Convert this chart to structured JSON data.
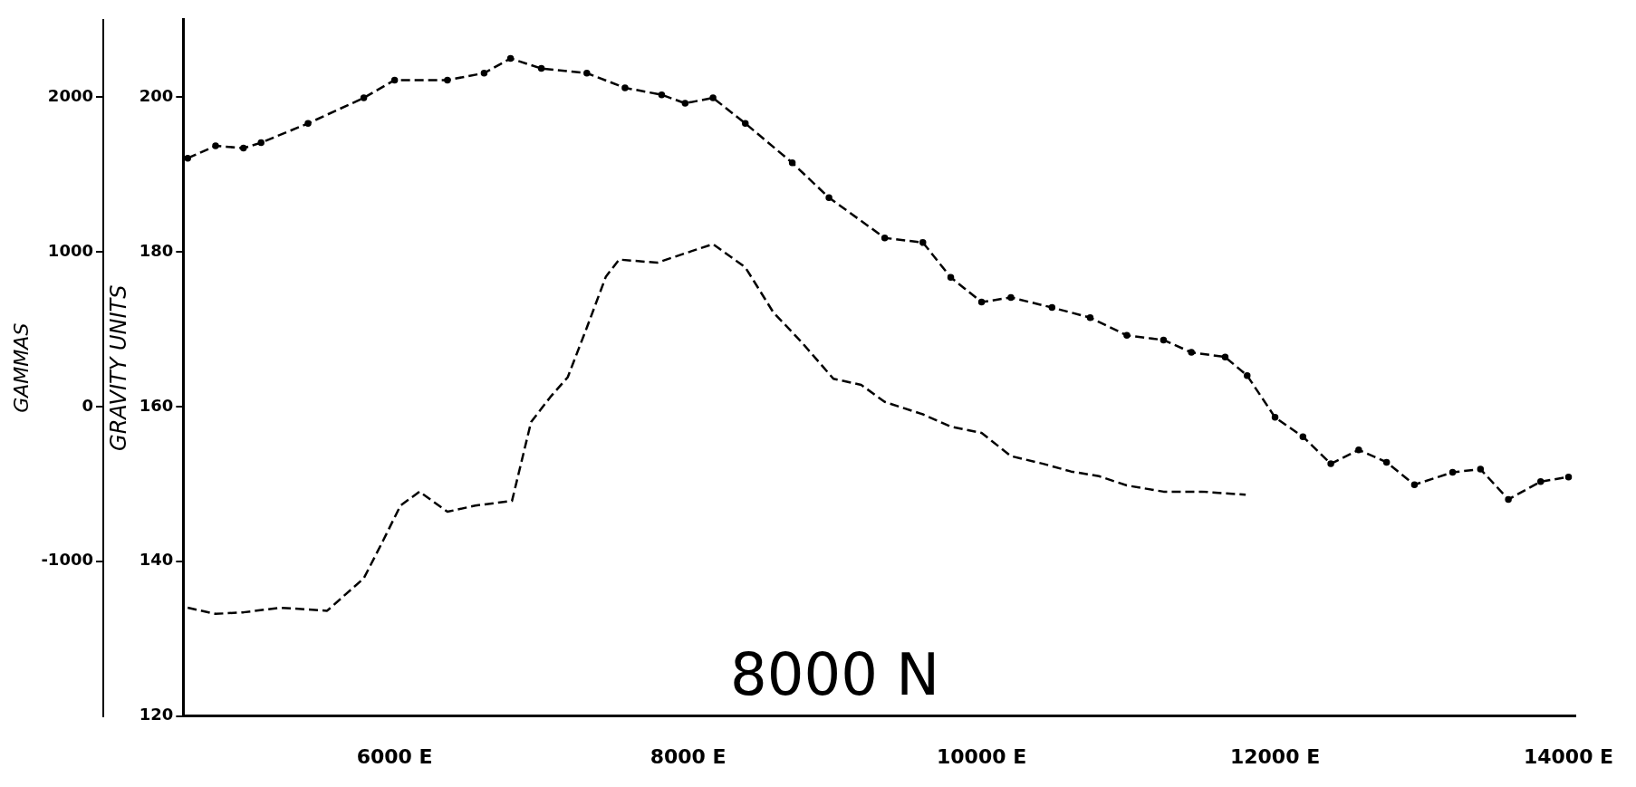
{
  "chart_data": {
    "type": "line",
    "title": "8000 N",
    "ylabel": "GRAVITY UNITS",
    "y2label": "GAMMAS",
    "xlim": [
      4560,
      14040
    ],
    "xticks": [
      {
        "value": 6000,
        "label": "6000 E"
      },
      {
        "value": 8000,
        "label": "8000 E"
      },
      {
        "value": 10000,
        "label": "10000 E"
      },
      {
        "value": 12000,
        "label": "12000 E"
      },
      {
        "value": 14000,
        "label": "14000 E"
      }
    ],
    "ylim": [
      120,
      210
    ],
    "yticks": [
      120,
      140,
      160,
      180,
      200
    ],
    "y2lim": [
      -2000,
      2500
    ],
    "y2ticks": [
      -1000,
      0,
      1000,
      2000
    ],
    "grid": false,
    "legend": false,
    "series": [
      {
        "color": "#000000",
        "line_style": "dashed",
        "marker": "circle",
        "x": [
          4590,
          4780,
          4970,
          5090,
          5410,
          5790,
          6000,
          6360,
          6610,
          6790,
          7000,
          7310,
          7570,
          7820,
          7980,
          8170,
          8390,
          8710,
          8960,
          9340,
          9600,
          9790,
          10000,
          10200,
          10480,
          10740,
          10990,
          11240,
          11430,
          11660,
          11810,
          12000,
          12190,
          12380,
          12570,
          12760,
          12950,
          13210,
          13400,
          13590,
          13810,
          14000
        ],
        "values": [
          192.1,
          193.7,
          193.4,
          194.1,
          196.6,
          199.9,
          202.2,
          202.2,
          203.1,
          205.0,
          203.7,
          203.1,
          201.2,
          200.3,
          199.2,
          199.9,
          196.6,
          191.5,
          187.0,
          181.8,
          181.2,
          176.7,
          173.5,
          174.1,
          172.8,
          171.5,
          169.2,
          168.6,
          167.0,
          166.4,
          164.0,
          158.6,
          156.1,
          152.6,
          154.4,
          152.8,
          149.9,
          151.5,
          151.9,
          148.0,
          150.3,
          150.9
        ]
      },
      {
        "color": "#000000",
        "line_style": "dashed",
        "axis": "y2",
        "x": [
          4590,
          4780,
          4970,
          5220,
          5540,
          5790,
          5920,
          6040,
          6170,
          6360,
          6550,
          6800,
          6930,
          7060,
          7180,
          7310,
          7440,
          7530,
          7790,
          8010,
          8170,
          8390,
          8580,
          8770,
          8990,
          9180,
          9340,
          9600,
          9790,
          10000,
          10200,
          10420,
          10610,
          10800,
          10990,
          11240,
          11500,
          11800
        ],
        "values": [
          -1300,
          -1340,
          -1330,
          -1300,
          -1320,
          -1110,
          -870,
          -640,
          -550,
          -680,
          -640,
          -610,
          -100,
          60,
          190,
          510,
          840,
          950,
          930,
          1000,
          1050,
          900,
          610,
          420,
          180,
          140,
          30,
          -50,
          -130,
          -170,
          -320,
          -370,
          -420,
          -450,
          -510,
          -550,
          -550,
          -570
        ]
      }
    ]
  }
}
